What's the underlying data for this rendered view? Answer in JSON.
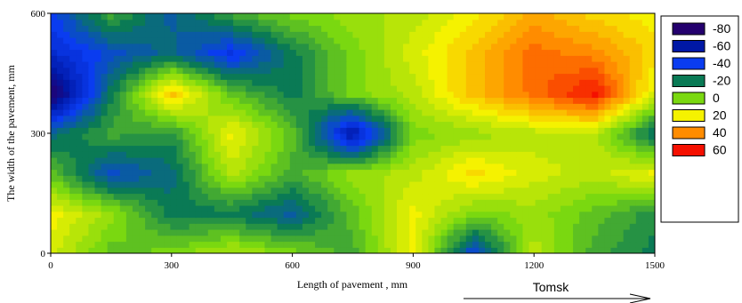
{
  "chart_data": {
    "type": "heatmap",
    "title": "",
    "xlabel": "Length of pavement , mm",
    "ylabel": "The width of the pavement, mm",
    "xlim": [
      0,
      1500
    ],
    "ylim": [
      0,
      600
    ],
    "x_ticks": [
      0,
      300,
      600,
      900,
      1200,
      1500
    ],
    "y_ticks": [
      0,
      300,
      600
    ],
    "grid": false,
    "legend_position": "right",
    "legend": [
      {
        "label": "-80",
        "value": -80,
        "color": "#24006e"
      },
      {
        "label": "-60",
        "value": -60,
        "color": "#0018a6"
      },
      {
        "label": "-40",
        "value": -40,
        "color": "#0a3cf0"
      },
      {
        "label": "-20",
        "value": -20,
        "color": "#0a7a55"
      },
      {
        "label": "0",
        "value": 0,
        "color": "#7ad810"
      },
      {
        "label": "20",
        "value": 20,
        "color": "#f5f200"
      },
      {
        "label": "40",
        "value": 40,
        "color": "#ff8c00"
      },
      {
        "label": "60",
        "value": 60,
        "color": "#f51000"
      }
    ],
    "annotation": "Tomsk",
    "x": [
      0,
      150,
      300,
      450,
      600,
      750,
      900,
      1050,
      1200,
      1350,
      1500
    ],
    "y": [
      0,
      100,
      200,
      300,
      400,
      500,
      600
    ],
    "z": [
      [
        15,
        -5,
        0,
        10,
        0,
        -10,
        20,
        -40,
        10,
        -10,
        -20
      ],
      [
        20,
        5,
        -20,
        -20,
        -30,
        -5,
        20,
        0,
        5,
        -5,
        -15
      ],
      [
        -5,
        -35,
        -25,
        10,
        -10,
        5,
        10,
        25,
        15,
        10,
        20
      ],
      [
        -25,
        -10,
        -15,
        20,
        -5,
        -60,
        0,
        5,
        10,
        10,
        -25
      ],
      [
        -80,
        -20,
        30,
        -5,
        -20,
        0,
        10,
        30,
        45,
        60,
        15
      ],
      [
        -50,
        -35,
        -25,
        -45,
        -20,
        0,
        15,
        30,
        45,
        40,
        25
      ],
      [
        -40,
        -10,
        -30,
        -10,
        0,
        5,
        10,
        20,
        35,
        25,
        20
      ]
    ]
  }
}
